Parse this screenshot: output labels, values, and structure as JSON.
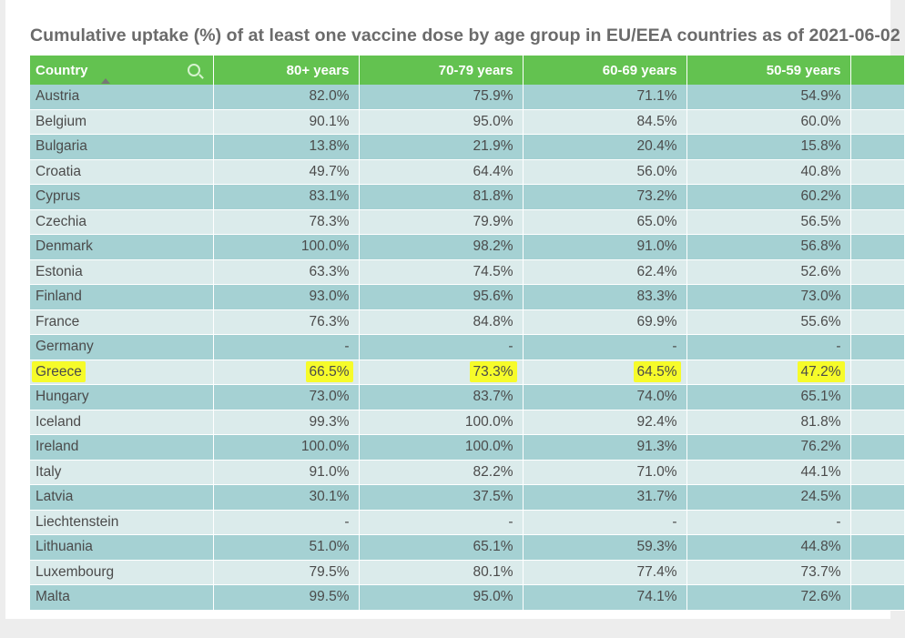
{
  "chart_data": {
    "type": "table",
    "title": "Cumulative uptake (%) of at least one vaccine dose by age group in EU/EEA countries as of 2021-06-02",
    "columns": [
      "Country",
      "80+ years",
      "70-79 years",
      "60-69 years",
      "50-59 years"
    ],
    "rows": [
      {
        "country": "Austria",
        "values": [
          "82.0%",
          "75.9%",
          "71.1%",
          "54.9%"
        ]
      },
      {
        "country": "Belgium",
        "values": [
          "90.1%",
          "95.0%",
          "84.5%",
          "60.0%"
        ]
      },
      {
        "country": "Bulgaria",
        "values": [
          "13.8%",
          "21.9%",
          "20.4%",
          "15.8%"
        ]
      },
      {
        "country": "Croatia",
        "values": [
          "49.7%",
          "64.4%",
          "56.0%",
          "40.8%"
        ]
      },
      {
        "country": "Cyprus",
        "values": [
          "83.1%",
          "81.8%",
          "73.2%",
          "60.2%"
        ]
      },
      {
        "country": "Czechia",
        "values": [
          "78.3%",
          "79.9%",
          "65.0%",
          "56.5%"
        ]
      },
      {
        "country": "Denmark",
        "values": [
          "100.0%",
          "98.2%",
          "91.0%",
          "56.8%"
        ]
      },
      {
        "country": "Estonia",
        "values": [
          "63.3%",
          "74.5%",
          "62.4%",
          "52.6%"
        ]
      },
      {
        "country": "Finland",
        "values": [
          "93.0%",
          "95.6%",
          "83.3%",
          "73.0%"
        ]
      },
      {
        "country": "France",
        "values": [
          "76.3%",
          "84.8%",
          "69.9%",
          "55.6%"
        ]
      },
      {
        "country": "Germany",
        "values": [
          "-",
          "-",
          "-",
          "-"
        ]
      },
      {
        "country": "Greece",
        "values": [
          "66.5%",
          "73.3%",
          "64.5%",
          "47.2%"
        ],
        "highlighted": true
      },
      {
        "country": "Hungary",
        "values": [
          "73.0%",
          "83.7%",
          "74.0%",
          "65.1%"
        ]
      },
      {
        "country": "Iceland",
        "values": [
          "99.3%",
          "100.0%",
          "92.4%",
          "81.8%"
        ]
      },
      {
        "country": "Ireland",
        "values": [
          "100.0%",
          "100.0%",
          "91.3%",
          "76.2%"
        ]
      },
      {
        "country": "Italy",
        "values": [
          "91.0%",
          "82.2%",
          "71.0%",
          "44.1%"
        ]
      },
      {
        "country": "Latvia",
        "values": [
          "30.1%",
          "37.5%",
          "31.7%",
          "24.5%"
        ]
      },
      {
        "country": "Liechtenstein",
        "values": [
          "-",
          "-",
          "-",
          "-"
        ]
      },
      {
        "country": "Lithuania",
        "values": [
          "51.0%",
          "65.1%",
          "59.3%",
          "44.8%"
        ]
      },
      {
        "country": "Luxembourg",
        "values": [
          "79.5%",
          "80.1%",
          "77.4%",
          "73.7%"
        ]
      },
      {
        "country": "Malta",
        "values": [
          "99.5%",
          "95.0%",
          "74.1%",
          "72.6%"
        ]
      }
    ]
  },
  "colors": {
    "header": "#63c250",
    "row_odd": "#a5d1d3",
    "row_even": "#dbebeb",
    "highlight": "#f6fb2a",
    "title": "#6b6b6b"
  },
  "icons": {
    "search": "search-icon",
    "sort": "sort-ascending-icon"
  }
}
